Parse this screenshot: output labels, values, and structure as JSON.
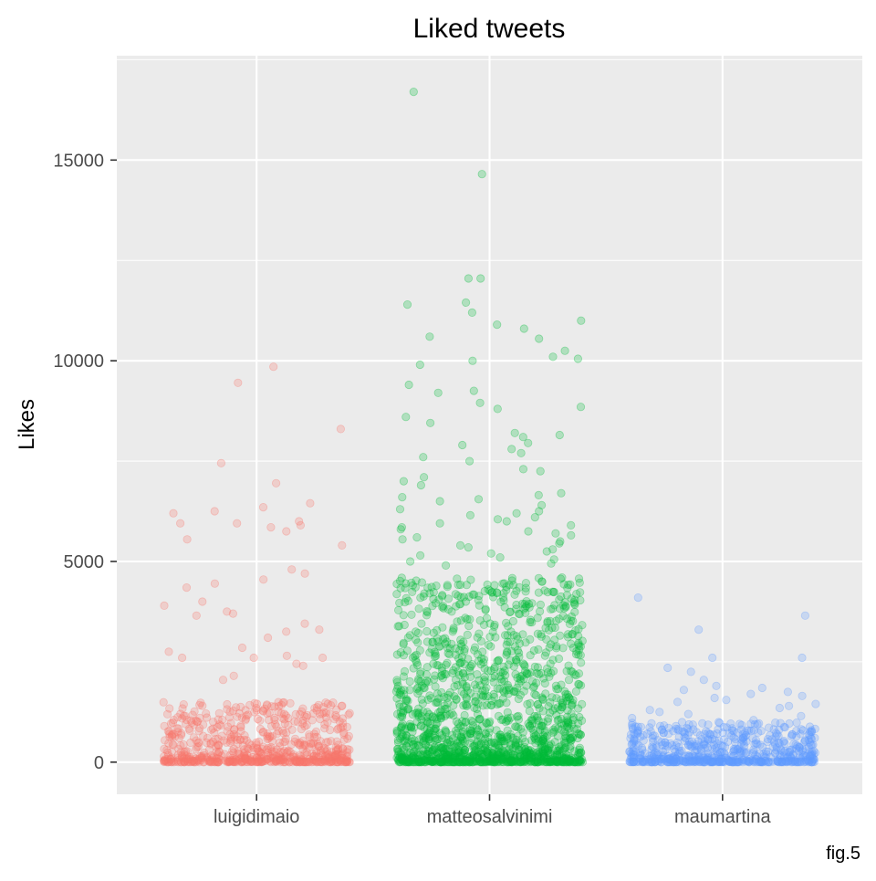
{
  "chart_data": {
    "type": "scatter",
    "title": "Liked tweets",
    "xlabel": "",
    "ylabel": "Likes",
    "caption": "fig.5",
    "categories": [
      "luigidimaio",
      "matteosalvinimi",
      "maumartina"
    ],
    "ylim": [
      -800,
      17600
    ],
    "y_ticks": [
      0,
      5000,
      10000,
      15000
    ],
    "y_tick_labels": [
      "0",
      "5000",
      "10000",
      "15000"
    ],
    "grid": true,
    "legend": "none",
    "colors": {
      "panel": "#ebebeb",
      "grid": "#ffffff",
      "tick": "#333333",
      "luigidimaio": "#F8766D",
      "matteosalvinimi": "#00BA38",
      "maumartina": "#619CFF"
    },
    "series": [
      {
        "name": "luigidimaio",
        "category": "luigidimaio",
        "color": "#F8766D",
        "jitter": 0.4,
        "bulk": {
          "count": 700,
          "max": 1500
        },
        "values": [
          3100,
          6200,
          4550,
          4800,
          7450,
          3450,
          3650,
          4000,
          6350,
          4350,
          3750,
          9450,
          6250,
          5850,
          5400,
          5900,
          6450,
          6950,
          5950,
          5950,
          9850,
          8300,
          3700,
          6000,
          5750,
          5550,
          4700,
          2600,
          2600,
          2750,
          2150,
          2050,
          2850,
          2600,
          2400,
          2450,
          3300,
          3250,
          2650,
          3900,
          4450
        ]
      },
      {
        "name": "matteosalvinimi",
        "category": "matteosalvinimi",
        "color": "#00BA38",
        "jitter": 0.4,
        "bulk": {
          "count": 1600,
          "max": 4600
        },
        "values": [
          16700,
          14650,
          12050,
          12050,
          11450,
          11400,
          11200,
          11000,
          10900,
          10800,
          10550,
          10600,
          10250,
          10100,
          10050,
          10000,
          9900,
          9400,
          9250,
          9200,
          8950,
          8850,
          8800,
          8600,
          8450,
          8200,
          8150,
          8100,
          7950,
          7900,
          7800,
          7700,
          7600,
          7500,
          7300,
          7250,
          7100,
          7000,
          6900,
          6700,
          6650,
          6600,
          6550,
          6500,
          6400,
          6300,
          6250,
          6200,
          6150,
          6100,
          6050,
          6000,
          5950,
          5900,
          5850,
          5800,
          5750,
          5700,
          5650,
          5600,
          5550,
          5500,
          5450,
          5400,
          5350,
          5300,
          5250,
          5200,
          5150,
          5100,
          5050,
          5000,
          4950,
          4900
        ]
      },
      {
        "name": "maumartina",
        "category": "maumartina",
        "color": "#619CFF",
        "jitter": 0.4,
        "bulk": {
          "count": 650,
          "max": 1000
        },
        "values": [
          4100,
          3650,
          3300,
          2600,
          2600,
          2350,
          2250,
          2050,
          1900,
          1850,
          1800,
          1750,
          1700,
          1650,
          1600,
          1550,
          1500,
          1450,
          1400,
          1350,
          1300,
          1250,
          1200,
          1150,
          1100,
          1050
        ]
      }
    ]
  }
}
